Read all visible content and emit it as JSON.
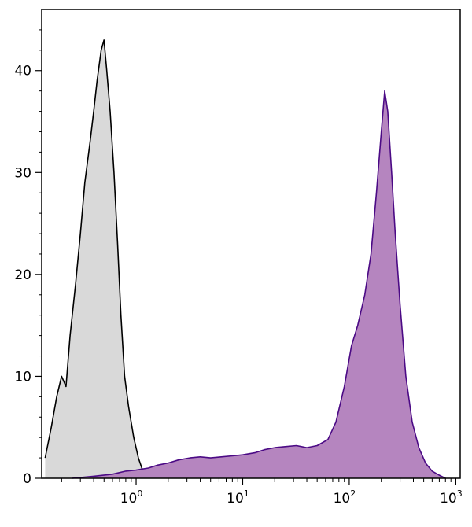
{
  "chart_data": {
    "type": "area",
    "title": "",
    "xlabel": "",
    "ylabel": "",
    "xscale": "log",
    "xlim": [
      0.13,
      1100
    ],
    "ylim": [
      0,
      46
    ],
    "grid": false,
    "legend": "none",
    "y_ticks": [
      0,
      10,
      20,
      30,
      40
    ],
    "y_tick_labels": [
      "0",
      "10",
      "20",
      "30",
      "40"
    ],
    "x_ticks": [
      {
        "value": 1,
        "base": "10",
        "exp": "0"
      },
      {
        "value": 10,
        "base": "10",
        "exp": "1"
      },
      {
        "value": 100,
        "base": "10",
        "exp": "2"
      },
      {
        "value": 1000,
        "base": "10",
        "exp": "3"
      }
    ],
    "series": [
      {
        "fill": "#d9d9d9",
        "stroke": "#000000",
        "points": [
          [
            0.14,
            2
          ],
          [
            0.16,
            5
          ],
          [
            0.18,
            8
          ],
          [
            0.2,
            10
          ],
          [
            0.22,
            9
          ],
          [
            0.24,
            14
          ],
          [
            0.27,
            19
          ],
          [
            0.3,
            24
          ],
          [
            0.33,
            29
          ],
          [
            0.37,
            33
          ],
          [
            0.4,
            36
          ],
          [
            0.43,
            39
          ],
          [
            0.47,
            42
          ],
          [
            0.5,
            43
          ],
          [
            0.53,
            40
          ],
          [
            0.57,
            36
          ],
          [
            0.62,
            30
          ],
          [
            0.67,
            23
          ],
          [
            0.72,
            16
          ],
          [
            0.78,
            10
          ],
          [
            0.85,
            7
          ],
          [
            0.95,
            4
          ],
          [
            1.05,
            2
          ],
          [
            1.15,
            0.8
          ],
          [
            1.25,
            0
          ]
        ]
      },
      {
        "fill": "#b585bf",
        "stroke": "#4b0a85",
        "points": [
          [
            0.25,
            0
          ],
          [
            0.4,
            0.2
          ],
          [
            0.6,
            0.4
          ],
          [
            0.8,
            0.7
          ],
          [
            1.0,
            0.8
          ],
          [
            1.3,
            1.0
          ],
          [
            1.6,
            1.3
          ],
          [
            2.0,
            1.5
          ],
          [
            2.5,
            1.8
          ],
          [
            3.2,
            2.0
          ],
          [
            4.0,
            2.1
          ],
          [
            5.0,
            2.0
          ],
          [
            6.3,
            2.1
          ],
          [
            8.0,
            2.2
          ],
          [
            10,
            2.3
          ],
          [
            13,
            2.5
          ],
          [
            16,
            2.8
          ],
          [
            20,
            3.0
          ],
          [
            25,
            3.1
          ],
          [
            32,
            3.2
          ],
          [
            40,
            3.0
          ],
          [
            50,
            3.2
          ],
          [
            63,
            3.8
          ],
          [
            75,
            5.5
          ],
          [
            90,
            9
          ],
          [
            105,
            13
          ],
          [
            120,
            15
          ],
          [
            140,
            18
          ],
          [
            160,
            22
          ],
          [
            180,
            28
          ],
          [
            200,
            34
          ],
          [
            215,
            38
          ],
          [
            230,
            36
          ],
          [
            250,
            30
          ],
          [
            270,
            24
          ],
          [
            300,
            17
          ],
          [
            340,
            10
          ],
          [
            390,
            5.5
          ],
          [
            450,
            3
          ],
          [
            520,
            1.5
          ],
          [
            600,
            0.7
          ],
          [
            700,
            0.3
          ],
          [
            800,
            0
          ]
        ]
      }
    ]
  }
}
